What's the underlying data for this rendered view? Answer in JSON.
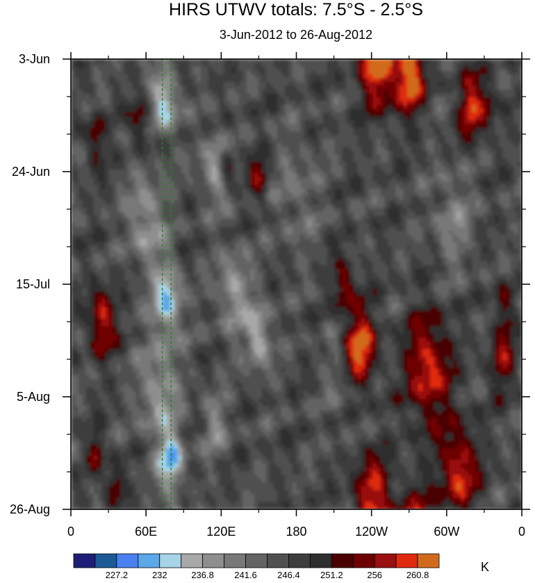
{
  "chart_data": {
    "type": "heatmap",
    "title": "HIRS UTWV totals: 7.5°S - 2.5°S",
    "subtitle": "3-Jun-2012 to 26-Aug-2012",
    "x_ticks": [
      "0",
      "60E",
      "120E",
      "180",
      "120W",
      "60W",
      "0"
    ],
    "y_ticks": [
      "3-Jun",
      "24-Jun",
      "15-Jul",
      "5-Aug",
      "26-Aug"
    ],
    "colorbar": {
      "unit": "K",
      "labels": [
        "227.2",
        "232",
        "236.8",
        "241.6",
        "246.4",
        "251.2",
        "256",
        "260.8"
      ],
      "colors": [
        "#1e1e78",
        "#1c5a96",
        "#4a80f0",
        "#5aa8e8",
        "#a8d4ea",
        "#a8a8a8",
        "#8e8e8e",
        "#787878",
        "#646464",
        "#505050",
        "#3e3e3e",
        "#2e2e2e",
        "#4a0000",
        "#6e0000",
        "#9a1010",
        "#e02a10",
        "#d26a1e"
      ]
    },
    "reference_lines": [
      73,
      80
    ],
    "reference_line_color": "#1a8c1a"
  }
}
